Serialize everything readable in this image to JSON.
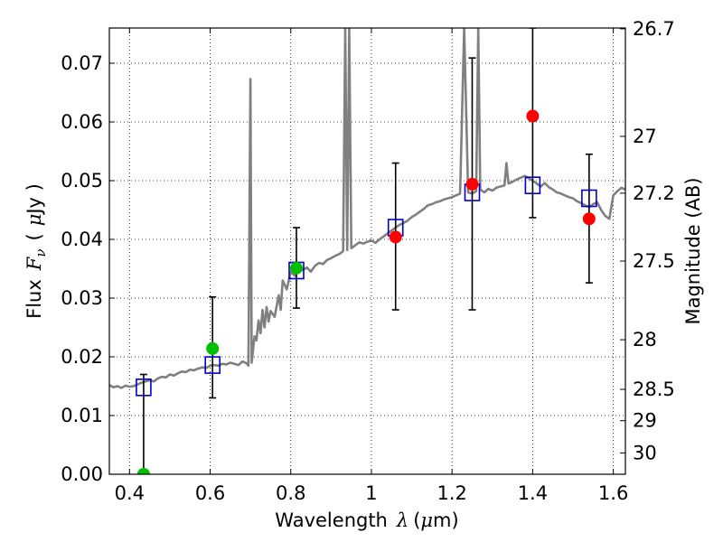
{
  "chart_data": {
    "type": "scatter",
    "title": "",
    "xlabel": "Wavelength",
    "xlabel_symbol": "λ",
    "xlabel_unit_open": "(",
    "xlabel_unit_mu": "μ",
    "xlabel_unit_close": "m)",
    "ylabel": "Flux",
    "ylabel_symbol": "F",
    "ylabel_subscript": "ν",
    "ylabel_unit_open": "(",
    "ylabel_unit_mu": "μ",
    "ylabel_unit_close": "Jy )",
    "y2label": "Magnitude (AB)",
    "xlim": [
      0.35,
      1.63
    ],
    "ylim": [
      0.0,
      0.076
    ],
    "grid": true,
    "x_ticks": [
      {
        "value": 0.4,
        "label": "0.4"
      },
      {
        "value": 0.6,
        "label": "0.6"
      },
      {
        "value": 0.8,
        "label": "0.8"
      },
      {
        "value": 1.0,
        "label": "1"
      },
      {
        "value": 1.2,
        "label": "1.2"
      },
      {
        "value": 1.4,
        "label": "1.4"
      },
      {
        "value": 1.6,
        "label": "1.6"
      }
    ],
    "y_ticks": [
      {
        "value": 0.0,
        "label": "0.00"
      },
      {
        "value": 0.01,
        "label": "0.01"
      },
      {
        "value": 0.02,
        "label": "0.02"
      },
      {
        "value": 0.03,
        "label": "0.03"
      },
      {
        "value": 0.04,
        "label": "0.04"
      },
      {
        "value": 0.05,
        "label": "0.05"
      },
      {
        "value": 0.06,
        "label": "0.06"
      },
      {
        "value": 0.07,
        "label": "0.07"
      }
    ],
    "y2_ticks": [
      {
        "mag": 26.7,
        "label": "26.7"
      },
      {
        "mag": 27,
        "label": "27"
      },
      {
        "mag": 27.2,
        "label": "27.2"
      },
      {
        "mag": 27.5,
        "label": "27.5"
      },
      {
        "mag": 28,
        "label": "28"
      },
      {
        "mag": 28.5,
        "label": "28.5"
      },
      {
        "mag": 29,
        "label": "29"
      },
      {
        "mag": 30,
        "label": "30"
      }
    ],
    "colors": {
      "model": "#808080",
      "model_points": "#0000cc",
      "detections": "#ff0000",
      "optical_detections": "#00c000",
      "errorbars": "#000000"
    },
    "model_spectrum": [
      [
        0.35,
        0.0152
      ],
      [
        0.36,
        0.0148
      ],
      [
        0.37,
        0.015
      ],
      [
        0.38,
        0.0147
      ],
      [
        0.39,
        0.0151
      ],
      [
        0.4,
        0.0149
      ],
      [
        0.41,
        0.015
      ],
      [
        0.42,
        0.0153
      ],
      [
        0.43,
        0.0156
      ],
      [
        0.44,
        0.0158
      ],
      [
        0.45,
        0.016
      ],
      [
        0.46,
        0.0158
      ],
      [
        0.47,
        0.0163
      ],
      [
        0.48,
        0.0166
      ],
      [
        0.49,
        0.0165
      ],
      [
        0.5,
        0.017
      ],
      [
        0.51,
        0.0168
      ],
      [
        0.52,
        0.0172
      ],
      [
        0.53,
        0.0175
      ],
      [
        0.54,
        0.0174
      ],
      [
        0.55,
        0.0178
      ],
      [
        0.56,
        0.0177
      ],
      [
        0.57,
        0.018
      ],
      [
        0.58,
        0.0182
      ],
      [
        0.59,
        0.0181
      ],
      [
        0.6,
        0.0185
      ],
      [
        0.61,
        0.0186
      ],
      [
        0.62,
        0.0185
      ],
      [
        0.63,
        0.0188
      ],
      [
        0.64,
        0.0187
      ],
      [
        0.65,
        0.019
      ],
      [
        0.66,
        0.0188
      ],
      [
        0.67,
        0.0186
      ],
      [
        0.68,
        0.0192
      ],
      [
        0.69,
        0.0189
      ],
      [
        0.695,
        0.0185
      ],
      [
        0.7,
        0.0673
      ],
      [
        0.703,
        0.019
      ],
      [
        0.71,
        0.0235
      ],
      [
        0.715,
        0.0228
      ],
      [
        0.72,
        0.0262
      ],
      [
        0.725,
        0.024
      ],
      [
        0.73,
        0.028
      ],
      [
        0.735,
        0.025
      ],
      [
        0.74,
        0.0285
      ],
      [
        0.745,
        0.026
      ],
      [
        0.75,
        0.0278
      ],
      [
        0.76,
        0.0268
      ],
      [
        0.77,
        0.0305
      ],
      [
        0.775,
        0.028
      ],
      [
        0.78,
        0.033
      ],
      [
        0.79,
        0.0315
      ],
      [
        0.8,
        0.0345
      ],
      [
        0.81,
        0.0338
      ],
      [
        0.82,
        0.035
      ],
      [
        0.83,
        0.0348
      ],
      [
        0.84,
        0.0352
      ],
      [
        0.85,
        0.0345
      ],
      [
        0.86,
        0.0355
      ],
      [
        0.87,
        0.036
      ],
      [
        0.88,
        0.0358
      ],
      [
        0.89,
        0.0365
      ],
      [
        0.9,
        0.0368
      ],
      [
        0.91,
        0.0372
      ],
      [
        0.92,
        0.0375
      ],
      [
        0.93,
        0.038
      ],
      [
        0.935,
        0.076
      ],
      [
        0.94,
        0.0382
      ],
      [
        0.945,
        0.076
      ],
      [
        0.95,
        0.0385
      ],
      [
        0.96,
        0.039
      ],
      [
        0.97,
        0.0395
      ],
      [
        0.98,
        0.0393
      ],
      [
        0.99,
        0.0396
      ],
      [
        1.0,
        0.0398
      ],
      [
        1.01,
        0.0394
      ],
      [
        1.02,
        0.04
      ],
      [
        1.03,
        0.0405
      ],
      [
        1.04,
        0.041
      ],
      [
        1.05,
        0.0415
      ],
      [
        1.06,
        0.042
      ],
      [
        1.07,
        0.0425
      ],
      [
        1.08,
        0.0428
      ],
      [
        1.09,
        0.0432
      ],
      [
        1.1,
        0.0438
      ],
      [
        1.11,
        0.0442
      ],
      [
        1.12,
        0.0447
      ],
      [
        1.13,
        0.0452
      ],
      [
        1.14,
        0.0458
      ],
      [
        1.15,
        0.046
      ],
      [
        1.16,
        0.0463
      ],
      [
        1.17,
        0.0465
      ],
      [
        1.18,
        0.0468
      ],
      [
        1.19,
        0.047
      ],
      [
        1.2,
        0.0472
      ],
      [
        1.21,
        0.0475
      ],
      [
        1.22,
        0.0478
      ],
      [
        1.23,
        0.076
      ],
      [
        1.24,
        0.048
      ],
      [
        1.25,
        0.0478
      ],
      [
        1.26,
        0.0482
      ],
      [
        1.265,
        0.076
      ],
      [
        1.27,
        0.0485
      ],
      [
        1.28,
        0.048
      ],
      [
        1.29,
        0.0486
      ],
      [
        1.3,
        0.0483
      ],
      [
        1.31,
        0.0488
      ],
      [
        1.32,
        0.049
      ],
      [
        1.33,
        0.0492
      ],
      [
        1.335,
        0.053
      ],
      [
        1.34,
        0.0495
      ],
      [
        1.35,
        0.0498
      ],
      [
        1.36,
        0.0502
      ],
      [
        1.37,
        0.0505
      ],
      [
        1.38,
        0.0508
      ],
      [
        1.39,
        0.0504
      ],
      [
        1.4,
        0.05
      ],
      [
        1.41,
        0.0495
      ],
      [
        1.42,
        0.049
      ],
      [
        1.43,
        0.0496
      ],
      [
        1.44,
        0.0489
      ],
      [
        1.45,
        0.0485
      ],
      [
        1.46,
        0.048
      ],
      [
        1.47,
        0.0478
      ],
      [
        1.48,
        0.0475
      ],
      [
        1.49,
        0.0472
      ],
      [
        1.5,
        0.047
      ],
      [
        1.51,
        0.0465
      ],
      [
        1.52,
        0.0462
      ],
      [
        1.53,
        0.0458
      ],
      [
        1.54,
        0.0455
      ],
      [
        1.55,
        0.046
      ],
      [
        1.56,
        0.0463
      ],
      [
        1.57,
        0.045
      ],
      [
        1.58,
        0.044
      ],
      [
        1.59,
        0.0435
      ],
      [
        1.6,
        0.0475
      ],
      [
        1.61,
        0.0482
      ],
      [
        1.62,
        0.0488
      ],
      [
        1.63,
        0.0485
      ]
    ],
    "model_points": [
      {
        "x": 0.435,
        "y": 0.0148
      },
      {
        "x": 0.606,
        "y": 0.0186
      },
      {
        "x": 0.814,
        "y": 0.0347
      },
      {
        "x": 1.06,
        "y": 0.042
      },
      {
        "x": 1.25,
        "y": 0.048
      },
      {
        "x": 1.4,
        "y": 0.0492
      },
      {
        "x": 1.54,
        "y": 0.047
      }
    ],
    "observations": [
      {
        "x": 0.435,
        "y": 0.0,
        "err_low": 0.0,
        "err_high": 0.017,
        "color": "#00c000"
      },
      {
        "x": 0.606,
        "y": 0.0214,
        "err_low": 0.013,
        "err_high": 0.0302,
        "color": "#00c000"
      },
      {
        "x": 0.814,
        "y": 0.0351,
        "err_low": 0.0283,
        "err_high": 0.042,
        "color": "#00c000"
      },
      {
        "x": 1.06,
        "y": 0.0404,
        "err_low": 0.028,
        "err_high": 0.053,
        "color": "#ff0000"
      },
      {
        "x": 1.25,
        "y": 0.0494,
        "err_low": 0.028,
        "err_high": 0.0709,
        "color": "#ff0000"
      },
      {
        "x": 1.4,
        "y": 0.061,
        "err_low": 0.0437,
        "err_high": 0.076,
        "color": "#ff0000"
      },
      {
        "x": 1.54,
        "y": 0.0435,
        "err_low": 0.0326,
        "err_high": 0.0545,
        "color": "#ff0000"
      }
    ]
  }
}
